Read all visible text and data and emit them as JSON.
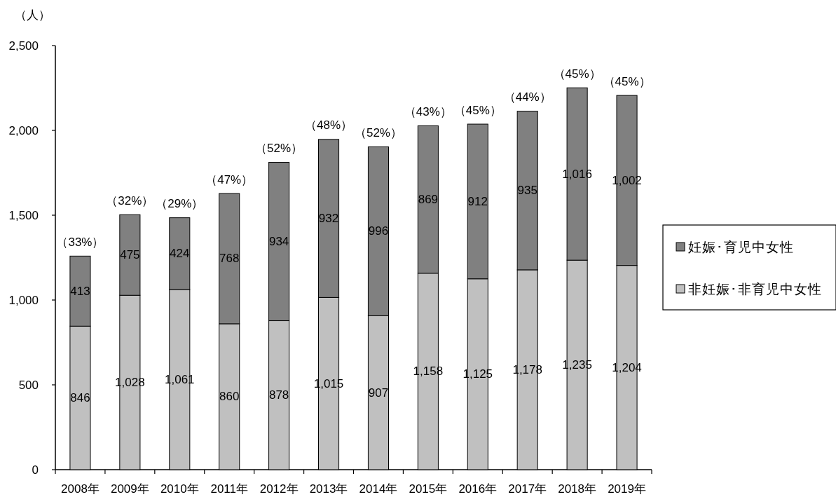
{
  "chart_data": {
    "type": "bar",
    "stacked": true,
    "ylabel": "（人）",
    "categories": [
      "2008年",
      "2009年",
      "2010年",
      "2011年",
      "2012年",
      "2013年",
      "2014年",
      "2015年",
      "2016年",
      "2017年",
      "2018年",
      "2019年"
    ],
    "series": [
      {
        "name": "非妊娠･非育児中女性",
        "color": "#c0c0c0",
        "values": [
          846,
          1028,
          1061,
          860,
          878,
          1015,
          907,
          1158,
          1125,
          1178,
          1235,
          1204
        ],
        "value_labels": [
          "846",
          "1,028",
          "1,061",
          "860",
          "878",
          "1,015",
          "907",
          "1,158",
          "1,125",
          "1,178",
          "1,235",
          "1,204"
        ]
      },
      {
        "name": "妊娠･育児中女性",
        "color": "#808080",
        "values": [
          413,
          475,
          424,
          768,
          934,
          932,
          996,
          869,
          912,
          935,
          1016,
          1002
        ],
        "value_labels": [
          "413",
          "475",
          "424",
          "768",
          "934",
          "932",
          "996",
          "869",
          "912",
          "935",
          "1,016",
          "1,002"
        ]
      }
    ],
    "ylim": [
      0,
      2500
    ],
    "yticks": [
      0,
      500,
      {
        "value": 1000,
        "label": "1,000"
      },
      {
        "value": 1500,
        "label": "1,500"
      },
      {
        "value": 2000,
        "label": "2,000"
      },
      {
        "value": 2500,
        "label": "2,500"
      }
    ],
    "legend": "right",
    "annotations": [
      {
        "text": "（33%）",
        "x": "2008年",
        "y": 1259
      },
      {
        "text": "（32%）",
        "x": "2009年",
        "y": 1503
      },
      {
        "text": "（29%）",
        "x": "2010年",
        "y": 1485
      },
      {
        "text": "（47%）",
        "x": "2011年",
        "y": 1628
      },
      {
        "text": "（52%）",
        "x": "2012年",
        "y": 1812
      },
      {
        "text": "（48%）",
        "x": "2013年",
        "y": 1947
      },
      {
        "text": "（52%）",
        "x": "2014年",
        "y": 1903
      },
      {
        "text": "（43%）",
        "x": "2015年",
        "y": 2027
      },
      {
        "text": "（45%）",
        "x": "2016年",
        "y": 2037
      },
      {
        "text": "（44%）",
        "x": "2017年",
        "y": 2113
      },
      {
        "text": "（45%）",
        "x": "2018年",
        "y": 2251
      },
      {
        "text": "（45%）",
        "x": "2019年",
        "y": 2206
      }
    ]
  }
}
